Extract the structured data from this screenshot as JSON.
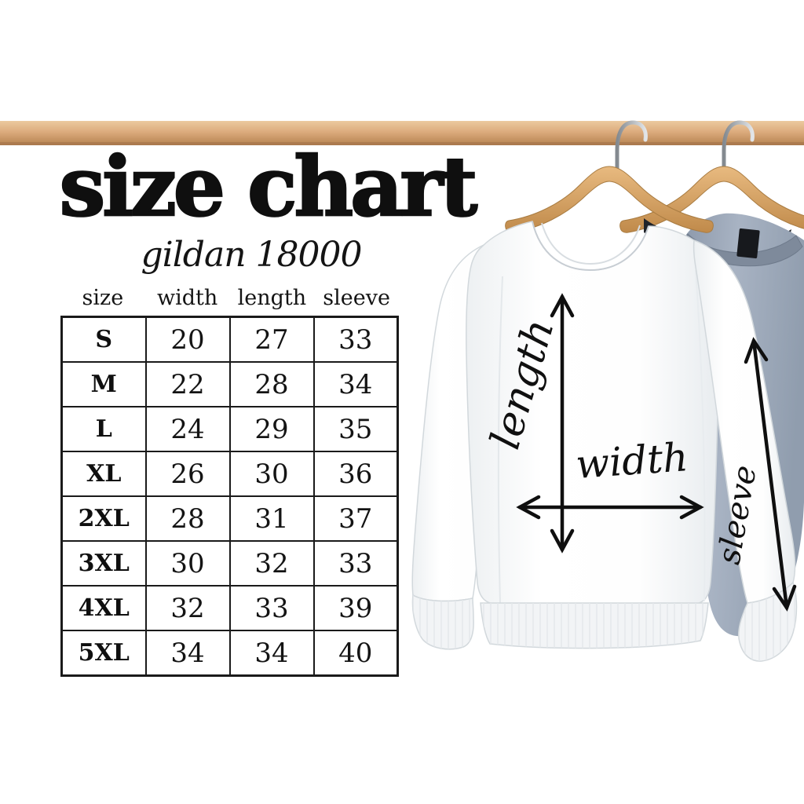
{
  "header": {
    "title": "size chart",
    "subtitle": "gildan 18000"
  },
  "size_table": {
    "headers": [
      "size",
      "width",
      "length",
      "sleeve"
    ],
    "rows": [
      {
        "cells": [
          "S",
          "20",
          "27",
          "33"
        ]
      },
      {
        "cells": [
          "M",
          "22",
          "28",
          "34"
        ]
      },
      {
        "cells": [
          "L",
          "24",
          "29",
          "35"
        ]
      },
      {
        "cells": [
          "XL",
          "26",
          "30",
          "36"
        ]
      },
      {
        "cells": [
          "2XL",
          "28",
          "31",
          "37"
        ]
      },
      {
        "cells": [
          "3XL",
          "30",
          "32",
          "33"
        ]
      },
      {
        "cells": [
          "4XL",
          "32",
          "33",
          "39"
        ]
      },
      {
        "cells": [
          "5XL",
          "34",
          "34",
          "40"
        ]
      }
    ]
  },
  "garment_diagram": {
    "length_label": "length",
    "width_label": "width",
    "sleeve_label": "sleeve"
  },
  "chart_data": {
    "type": "table",
    "title": "size chart",
    "subtitle": "gildan 18000",
    "columns": [
      "size",
      "width",
      "length",
      "sleeve"
    ],
    "rows": [
      [
        "S",
        20,
        27,
        33
      ],
      [
        "M",
        22,
        28,
        34
      ],
      [
        "L",
        24,
        29,
        35
      ],
      [
        "XL",
        26,
        30,
        36
      ],
      [
        "2XL",
        28,
        31,
        37
      ],
      [
        "3XL",
        30,
        32,
        33
      ],
      [
        "4XL",
        32,
        33,
        39
      ],
      [
        "5XL",
        34,
        34,
        40
      ]
    ]
  },
  "colors": {
    "text": "#111111",
    "table_border": "#1a1a1a",
    "rail_wood": "#d9a87a",
    "hanger_wood": "#d49a5e",
    "white_garment": "#fdfdfe",
    "gray_garment": "#97a3b4",
    "arrow": "#0f0f0f"
  }
}
